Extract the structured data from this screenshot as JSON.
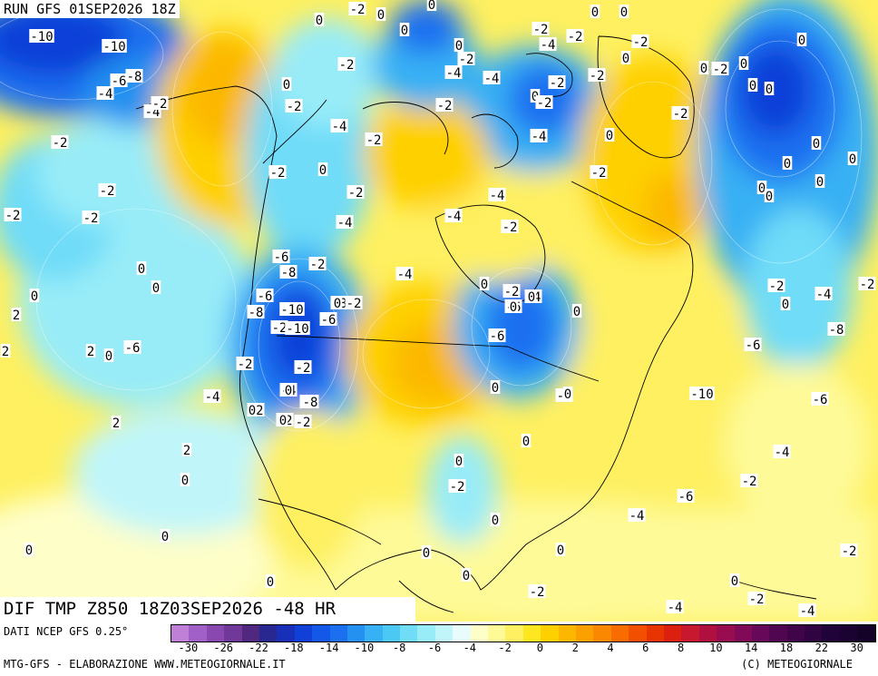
{
  "header": {
    "run_title": "RUN GFS 01SEP2026 18Z",
    "panel_title": "DIF TMP Z850 18Z03SEP2026 -48 HR"
  },
  "footer": {
    "source": "DATI NCEP GFS 0.25°",
    "credit": "MTG-GFS - ELABORAZIONE WWW.METEOGIORNALE.IT",
    "copyright": "(C) METEOGIORNALE"
  },
  "legend": {
    "colors": [
      "#c080d8",
      "#a060c8",
      "#8848b0",
      "#703898",
      "#502880",
      "#282890",
      "#1830b8",
      "#1040d8",
      "#1458e8",
      "#1c70f0",
      "#2490f0",
      "#38b0f4",
      "#4cc8f4",
      "#70dcf8",
      "#98ecf8",
      "#c0f6fa",
      "#e8fcfc",
      "#fefec8",
      "#fefa98",
      "#fef060",
      "#fee620",
      "#fed000",
      "#fcb800",
      "#fca000",
      "#fa8800",
      "#f86c00",
      "#f25000",
      "#e83400",
      "#dc2010",
      "#c81830",
      "#b01040",
      "#980c50",
      "#800a58",
      "#680858",
      "#500650",
      "#400448",
      "#300440",
      "#200338",
      "#1a0330",
      "#140228"
    ],
    "tick_labels": [
      "-30",
      "-26",
      "-22",
      "-18",
      "-14",
      "-10",
      "-8",
      "-6",
      "-4",
      "-2",
      "0",
      "2",
      "4",
      "6",
      "8",
      "10",
      "14",
      "18",
      "22",
      "30"
    ]
  },
  "map_labels": [
    "-10",
    "-10",
    "-6",
    "-8",
    "-4",
    "-4",
    "-2",
    "-2",
    "-2",
    "-2",
    "-2",
    "0",
    "0",
    "2",
    "0",
    "2",
    "2",
    "0",
    "2",
    "2",
    "0",
    "0",
    "0",
    "0",
    "0",
    "0",
    "0",
    "-2",
    "0",
    "0",
    "-2",
    "-4",
    "-2",
    "-4",
    "-2",
    "0",
    "-2",
    "-4",
    "-2",
    "0",
    "-2",
    "-2",
    "-4",
    "-4",
    "-2",
    "-6",
    "-8",
    "-2",
    "-6",
    "-10",
    "-8",
    "-2",
    "-10",
    "-6",
    "-8",
    "-2",
    "-4",
    "0",
    "-2",
    "-4",
    "-6",
    "0",
    "-6",
    "-6",
    "-2",
    "-2",
    "-4",
    "-2",
    "-2",
    "-2",
    "-2",
    "-4",
    "-2",
    "0",
    "0",
    "0",
    "0",
    "0",
    "0",
    "0",
    "-2",
    "-4",
    "-2",
    "-6",
    "-2",
    "0",
    "-2",
    "-2",
    "-4",
    "0",
    "-2",
    "-4",
    "-2",
    "0",
    "0",
    "0",
    "-2",
    "-2",
    "0",
    "-2",
    "0",
    "0",
    "0",
    "0",
    "0",
    "0",
    "0",
    "0",
    "0",
    "0",
    "-2",
    "0",
    "-4",
    "-2",
    "-8",
    "-6",
    "-10",
    "-6",
    "-4",
    "-2",
    "-6",
    "-4",
    "-2",
    "0",
    "-2",
    "-4",
    "-4",
    "-2",
    "0",
    "-2",
    "0",
    "-2",
    "0",
    "0",
    "-8",
    "0",
    "0",
    "0"
  ]
}
